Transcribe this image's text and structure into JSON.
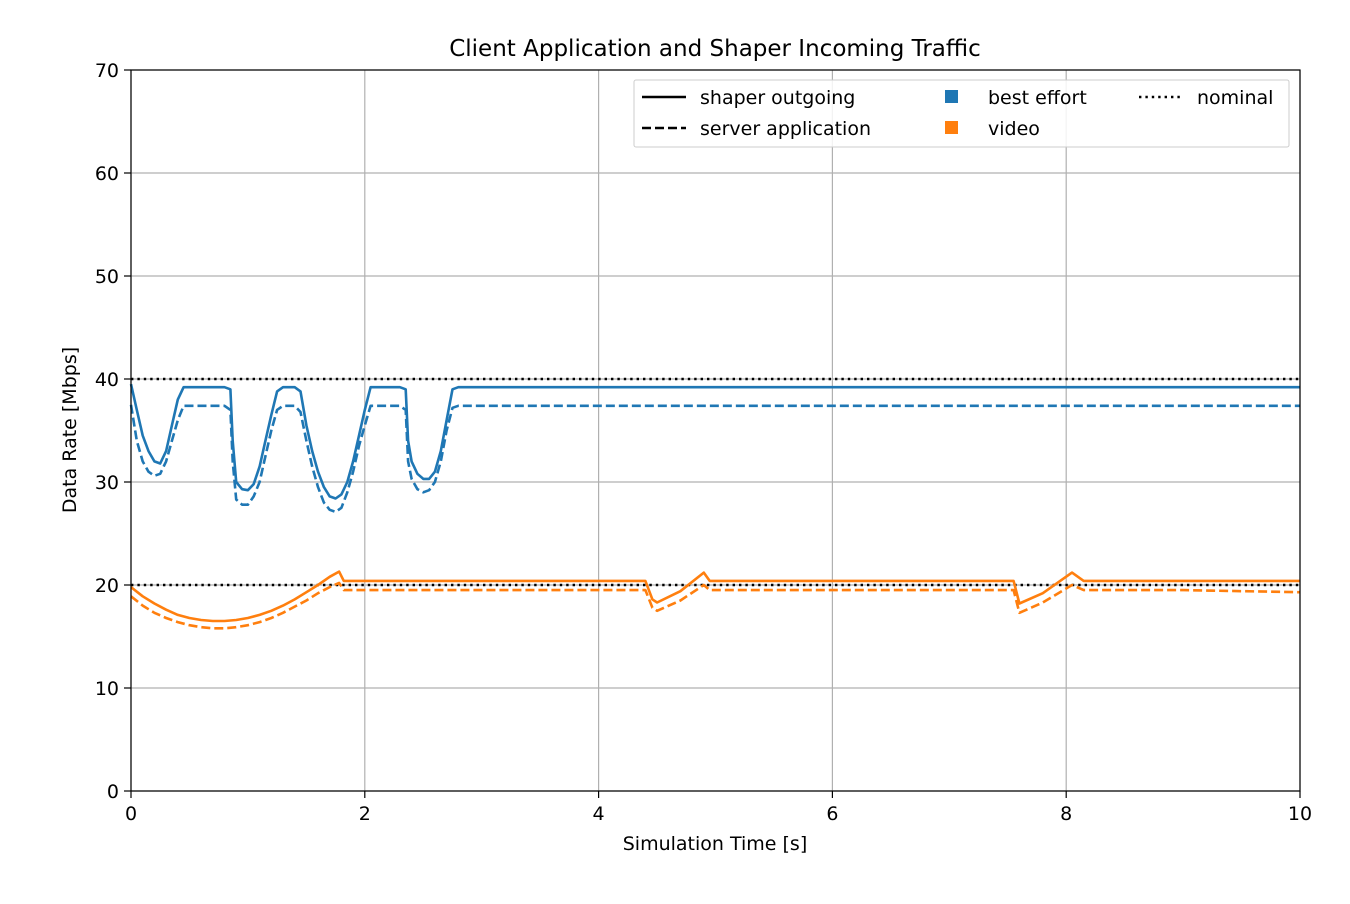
{
  "chart_data": {
    "type": "line",
    "title": "Client Application and Shaper Incoming Traffic",
    "xlabel": "Simulation Time [s]",
    "ylabel": "Data Rate [Mbps]",
    "xlim": [
      0,
      10
    ],
    "ylim": [
      0,
      70
    ],
    "xticks": [
      0,
      2,
      4,
      6,
      8,
      10
    ],
    "xtick_labels": [
      "0",
      "2",
      "4",
      "6",
      "8",
      "10"
    ],
    "yticks": [
      0,
      10,
      20,
      30,
      40,
      50,
      60,
      70
    ],
    "ytick_labels": [
      "0",
      "10",
      "20",
      "30",
      "40",
      "50",
      "60",
      "70"
    ],
    "grid": true,
    "legend_position": "top-right",
    "legend": {
      "line_styles": [
        {
          "label": "shaper outgoing",
          "style": "solid"
        },
        {
          "label": "server application",
          "style": "dashed"
        }
      ],
      "colors": [
        {
          "label": "best effort",
          "color": "#1f77b4"
        },
        {
          "label": "video",
          "color": "#ff7f0e"
        }
      ],
      "reference": {
        "label": "nominal",
        "style": "dotted",
        "color": "#000000"
      }
    },
    "series": [
      {
        "name": "best effort / shaper outgoing",
        "class": "best effort",
        "style": "solid",
        "color": "#1f77b4",
        "x": [
          0,
          0.05,
          0.1,
          0.15,
          0.2,
          0.25,
          0.3,
          0.35,
          0.4,
          0.45,
          0.5,
          0.6,
          0.7,
          0.8,
          0.85,
          0.87,
          0.9,
          0.95,
          1.0,
          1.05,
          1.1,
          1.15,
          1.2,
          1.25,
          1.3,
          1.35,
          1.4,
          1.45,
          1.5,
          1.55,
          1.6,
          1.65,
          1.7,
          1.75,
          1.8,
          1.85,
          1.9,
          1.95,
          2.0,
          2.05,
          2.1,
          2.15,
          2.2,
          2.3,
          2.35,
          2.37,
          2.4,
          2.45,
          2.5,
          2.55,
          2.6,
          2.65,
          2.7,
          2.75,
          2.8,
          3.0,
          4.0,
          5.0,
          6.0,
          7.0,
          8.0,
          9.0,
          10.0
        ],
        "y": [
          39.5,
          37.0,
          34.5,
          33.0,
          32.0,
          31.8,
          33.0,
          35.5,
          38.0,
          39.2,
          39.2,
          39.2,
          39.2,
          39.2,
          39.0,
          34.0,
          30.0,
          29.3,
          29.2,
          29.8,
          31.5,
          34.0,
          36.5,
          38.8,
          39.2,
          39.2,
          39.2,
          38.8,
          35.5,
          33.0,
          31.0,
          29.5,
          28.6,
          28.4,
          28.8,
          30.0,
          32.0,
          34.5,
          37.0,
          39.2,
          39.2,
          39.2,
          39.2,
          39.2,
          39.0,
          34.0,
          32.0,
          30.8,
          30.3,
          30.3,
          31.0,
          33.0,
          36.0,
          39.0,
          39.2,
          39.2,
          39.2,
          39.2,
          39.2,
          39.2,
          39.2,
          39.2,
          39.2
        ]
      },
      {
        "name": "best effort / server application",
        "class": "best effort",
        "style": "dashed",
        "color": "#1f77b4",
        "x": [
          0,
          0.05,
          0.1,
          0.15,
          0.2,
          0.25,
          0.3,
          0.35,
          0.4,
          0.45,
          0.5,
          0.6,
          0.7,
          0.8,
          0.85,
          0.87,
          0.9,
          0.95,
          1.0,
          1.05,
          1.1,
          1.15,
          1.2,
          1.25,
          1.3,
          1.35,
          1.4,
          1.45,
          1.5,
          1.55,
          1.6,
          1.65,
          1.7,
          1.75,
          1.8,
          1.85,
          1.9,
          1.95,
          2.0,
          2.05,
          2.1,
          2.15,
          2.2,
          2.3,
          2.35,
          2.37,
          2.4,
          2.45,
          2.5,
          2.55,
          2.6,
          2.65,
          2.7,
          2.75,
          2.8,
          3.0,
          4.0,
          5.0,
          6.0,
          7.0,
          8.0,
          9.0,
          10.0
        ],
        "y": [
          37.5,
          34.0,
          32.0,
          31.0,
          30.6,
          30.8,
          32.0,
          34.0,
          36.0,
          37.4,
          37.4,
          37.4,
          37.4,
          37.4,
          37.0,
          32.0,
          28.3,
          27.8,
          27.8,
          28.6,
          30.0,
          32.5,
          35.0,
          37.0,
          37.4,
          37.4,
          37.4,
          36.8,
          34.0,
          31.5,
          29.5,
          28.0,
          27.3,
          27.1,
          27.5,
          29.0,
          31.0,
          33.5,
          35.5,
          37.4,
          37.4,
          37.4,
          37.4,
          37.4,
          37.0,
          32.0,
          30.3,
          29.3,
          29.0,
          29.2,
          30.0,
          32.0,
          35.0,
          37.2,
          37.4,
          37.4,
          37.4,
          37.4,
          37.4,
          37.4,
          37.4,
          37.4,
          37.4
        ]
      },
      {
        "name": "video / shaper outgoing",
        "class": "video",
        "style": "solid",
        "color": "#ff7f0e",
        "x": [
          0,
          0.1,
          0.2,
          0.3,
          0.4,
          0.5,
          0.6,
          0.7,
          0.8,
          0.9,
          1.0,
          1.1,
          1.2,
          1.3,
          1.4,
          1.5,
          1.6,
          1.7,
          1.78,
          1.82,
          2.0,
          3.0,
          4.0,
          4.4,
          4.46,
          4.5,
          4.7,
          4.9,
          4.95,
          5.5,
          6.5,
          7.5,
          7.55,
          7.6,
          7.8,
          8.05,
          8.15,
          9.0,
          10.0
        ],
        "y": [
          19.8,
          18.9,
          18.2,
          17.6,
          17.1,
          16.8,
          16.6,
          16.5,
          16.5,
          16.6,
          16.8,
          17.1,
          17.5,
          18.0,
          18.6,
          19.3,
          20.0,
          20.8,
          21.3,
          20.4,
          20.4,
          20.4,
          20.4,
          20.4,
          18.6,
          18.3,
          19.4,
          21.2,
          20.4,
          20.4,
          20.4,
          20.4,
          20.4,
          18.2,
          19.2,
          21.2,
          20.4,
          20.4,
          20.4
        ]
      },
      {
        "name": "video / server application",
        "class": "video",
        "style": "dashed",
        "color": "#ff7f0e",
        "x": [
          0,
          0.1,
          0.2,
          0.3,
          0.4,
          0.5,
          0.6,
          0.7,
          0.8,
          0.9,
          1.0,
          1.1,
          1.2,
          1.3,
          1.4,
          1.5,
          1.6,
          1.7,
          1.78,
          1.82,
          2.0,
          3.0,
          4.0,
          4.4,
          4.46,
          4.5,
          4.7,
          4.9,
          4.95,
          5.5,
          6.5,
          7.5,
          7.55,
          7.6,
          7.8,
          8.05,
          8.15,
          9.0,
          10.0
        ],
        "y": [
          18.9,
          18.0,
          17.3,
          16.8,
          16.4,
          16.1,
          15.9,
          15.8,
          15.8,
          15.9,
          16.1,
          16.4,
          16.8,
          17.3,
          17.9,
          18.5,
          19.2,
          19.8,
          20.2,
          19.5,
          19.5,
          19.5,
          19.5,
          19.5,
          17.8,
          17.5,
          18.5,
          20.0,
          19.5,
          19.5,
          19.5,
          19.5,
          19.5,
          17.3,
          18.3,
          20.0,
          19.5,
          19.5,
          19.3
        ]
      }
    ],
    "reference_lines": [
      {
        "class": "best effort",
        "y": 40,
        "style": "dotted",
        "color": "#000000"
      },
      {
        "class": "video",
        "y": 20,
        "style": "dotted",
        "color": "#000000"
      }
    ]
  }
}
